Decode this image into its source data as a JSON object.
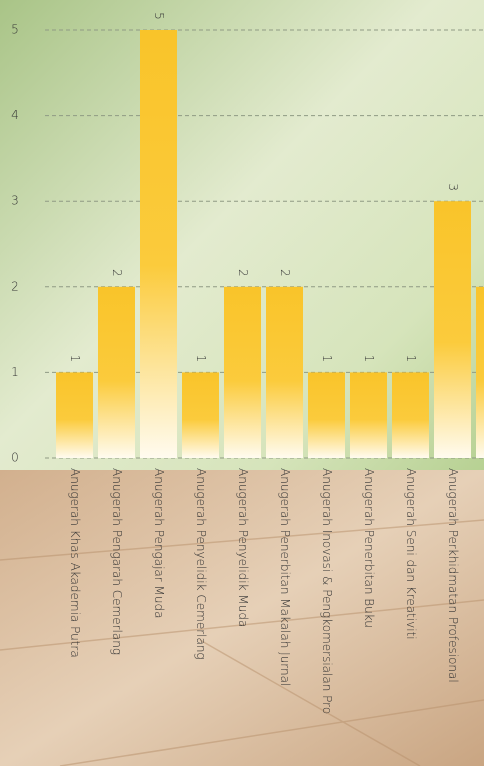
{
  "chart_data": {
    "type": "bar",
    "categories": [
      "Anugerah Khas Akademia Putra",
      "Anugerah Pengarah Cemerlang",
      "Anugerah Pengajar Muda",
      "Anugerah Penyelidik Cemerlang",
      "Anugerah Penyelidik Muda",
      "Anugerah Penerbitan Makalah Jurnal",
      "Anugerah Inovasi & Pengkomersialan Pro",
      "Anugerah Penerbitan Buku",
      "Anugerah Seni dan Kreativiti",
      "Anugerah Perkhidmatan Profesional",
      null
    ],
    "values": [
      1,
      2,
      5,
      1,
      2,
      2,
      1,
      1,
      1,
      3,
      2
    ],
    "color": "#f9c42a",
    "ylim": [
      0,
      5
    ],
    "yticks": [
      0,
      1,
      2,
      3,
      4,
      5
    ],
    "grid": true
  }
}
